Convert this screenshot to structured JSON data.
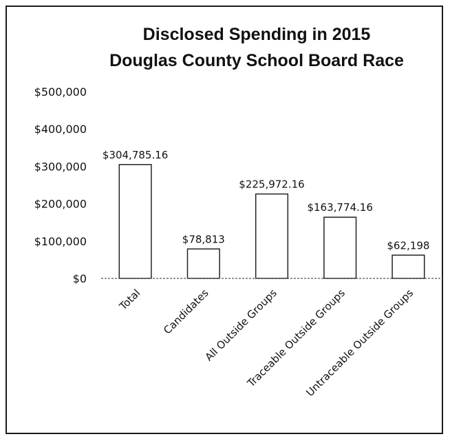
{
  "chart_data": {
    "type": "bar",
    "title_lines": [
      "Disclosed Spending in 2015",
      "Douglas County School Board Race"
    ],
    "categories": [
      "Total",
      "Candidates",
      "All Outside Groups",
      "Traceable Outside Groups",
      "Untraceable Outside Groups"
    ],
    "values": [
      304785.16,
      78813,
      225972.16,
      163774.16,
      62198
    ],
    "data_labels": [
      "$304,785.16",
      "$78,813",
      "$225,972.16",
      "$163,774.16",
      "$62,198"
    ],
    "yticks": [
      0,
      100000,
      200000,
      300000,
      400000,
      500000
    ],
    "ytick_labels": [
      "$0",
      "$100,000",
      "$200,000",
      "$300,000",
      "$400,000",
      "$500,000"
    ],
    "ylim": [
      0,
      500000
    ],
    "grid": false,
    "bar_fill": "#ffffff",
    "bar_stroke": "#222222"
  }
}
